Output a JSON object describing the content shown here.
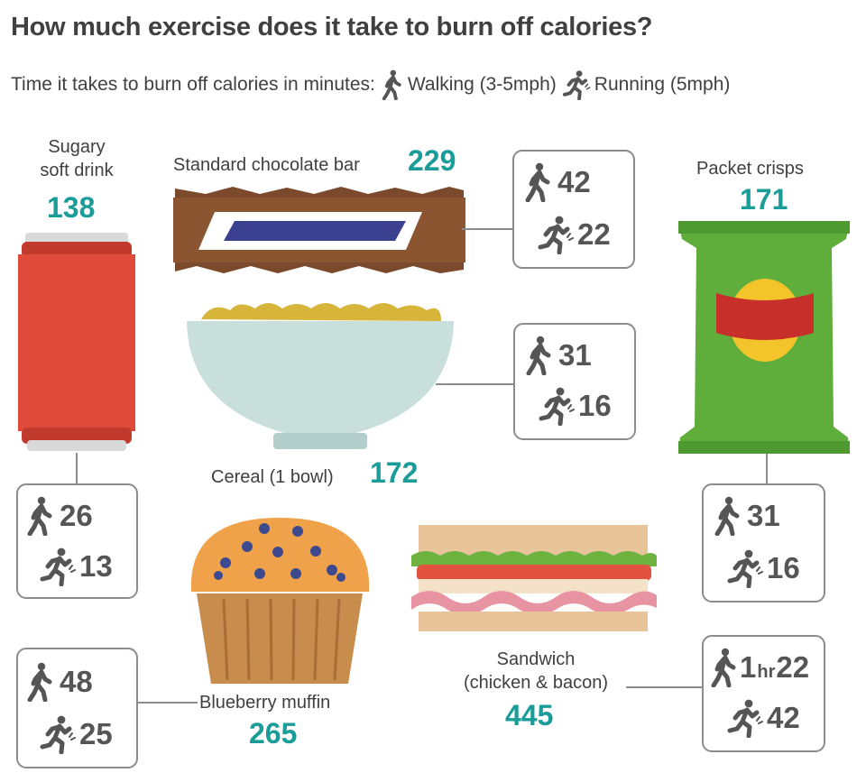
{
  "title": "How much exercise does it take to burn off calories?",
  "subtitle": "Time it takes to burn off calories in minutes:",
  "legend": {
    "walking_label": "Walking (3-5mph)",
    "running_label": "Running (5mph)",
    "walking_icon": "walking-figure-icon",
    "running_icon": "running-figure-icon"
  },
  "colors": {
    "calorie_text": "#1a9c98",
    "box_border": "#8c8c8c",
    "text": "#404040"
  },
  "items": {
    "soft_drink": {
      "label_line1": "Sugary",
      "label_line2": "soft drink",
      "calories": "138",
      "walking": "26",
      "running": "13"
    },
    "chocolate_bar": {
      "label": "Standard chocolate bar",
      "calories": "229",
      "walking": "42",
      "running": "22"
    },
    "crisps": {
      "label": "Packet crisps",
      "calories": "171",
      "walking": "31",
      "running": "16"
    },
    "cereal": {
      "label": "Cereal (1 bowl)",
      "calories": "172",
      "walking": "31",
      "running": "16"
    },
    "muffin": {
      "label": "Blueberry muffin",
      "calories": "265",
      "walking": "48",
      "running": "25"
    },
    "sandwich": {
      "label_line1": "Sandwich",
      "label_line2": "(chicken & bacon)",
      "calories": "445",
      "walking_hours": "1",
      "walking_hours_unit": "hr",
      "walking": "22",
      "running": "42"
    }
  }
}
